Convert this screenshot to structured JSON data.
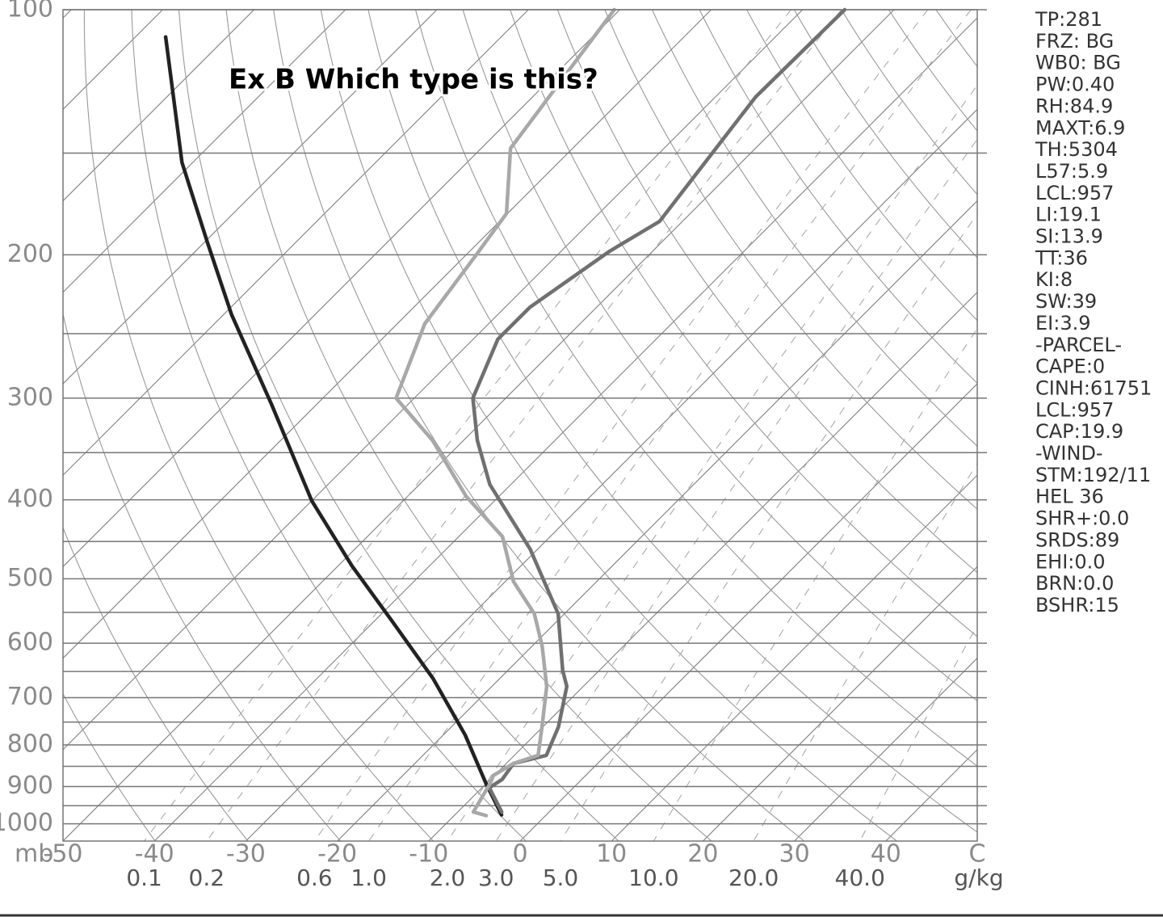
{
  "chart_data": {
    "type": "skewt",
    "title": "Ex B Which type is this?",
    "y_label": "mb",
    "log_y": true,
    "ylim": [
      100,
      1050
    ],
    "yticks": [
      100,
      200,
      300,
      400,
      500,
      600,
      700,
      800,
      900,
      1000
    ],
    "y_minor_gridlines": [
      150,
      250,
      350,
      450,
      550,
      650,
      750,
      850,
      950
    ],
    "xlim": [
      -50,
      50
    ],
    "xticks": [
      -50,
      -40,
      -30,
      -20,
      -10,
      0,
      10,
      20,
      30,
      40,
      {
        "value": 50,
        "label": "C"
      }
    ],
    "mixing_ratio_ticks": [
      {
        "value": 0.1,
        "label": "0.1"
      },
      {
        "value": 0.2,
        "label": "0.2"
      },
      {
        "value": 0.6,
        "label": "0.6"
      },
      {
        "value": 1,
        "label": "1.0"
      },
      {
        "value": 2,
        "label": "2.0"
      },
      {
        "value": 3,
        "label": "3.0"
      },
      {
        "value": 5,
        "label": "5.0"
      },
      {
        "value": 10,
        "label": "10.0"
      },
      {
        "value": 20,
        "label": "20.0"
      },
      {
        "value": 40,
        "label": "40.0"
      }
    ],
    "mixing_ratio_unit": "g/kg",
    "series": [
      {
        "color": "#222222",
        "y": [
          108,
          154,
          193,
          237,
          305,
          401,
          482,
          565,
          663,
          778,
          891,
          975
        ],
        "values": [
          -126.7,
          -111.2,
          -99.7,
          -89.1,
          -75,
          -60,
          -48.5,
          -37.9,
          -27.3,
          -17.6,
          -10.1,
          -4.9
        ]
      },
      {
        "color": "#707070",
        "y": [
          100,
          128,
          182,
          198,
          232,
          254,
          300,
          338,
          383,
          460,
          552,
          648,
          678,
          760,
          824,
          843,
          882,
          903,
          967
        ],
        "values": [
          -55.4,
          -55.6,
          -52.5,
          -54.7,
          -57.3,
          -57.3,
          -53.6,
          -48.5,
          -42.3,
          -30.8,
          -20.7,
          -14,
          -11.8,
          -8.3,
          -6.5,
          -9.2,
          -8.7,
          -9.2,
          -5.2
        ]
      },
      {
        "color": "#a8a8a8",
        "y": [
          100,
          148,
          178,
          202,
          243,
          300,
          338,
          396,
          444,
          504,
          552,
          605,
          678,
          760,
          824,
          843,
          872,
          891,
          967,
          977
        ],
        "values": [
          -80.6,
          -76.8,
          -70.1,
          -68.8,
          -67,
          -62,
          -53.4,
          -43.6,
          -35.2,
          -29.1,
          -23.3,
          -18.9,
          -14,
          -10.1,
          -7.4,
          -9.2,
          -10.1,
          -9.6,
          -8.3,
          -6.5
        ]
      }
    ],
    "indices": [
      "TP:281",
      "FRZ: BG",
      "WB0: BG",
      "PW:0.40",
      "RH:84.9",
      "MAXT:6.9",
      "TH:5304",
      "L57:5.9",
      "LCL:957",
      "LI:19.1",
      "SI:13.9",
      "TT:36",
      "KI:8",
      "SW:39",
      "EI:3.9",
      "-PARCEL-",
      "CAPE:0",
      "CINH:61751",
      "LCL:957",
      "CAP:19.9",
      "-WIND-",
      "STM:192/11",
      "HEL 36",
      "SHR+:0.0",
      "SRDS:89",
      "EHI:0.0",
      "BRN:0.0",
      "BSHR:15"
    ]
  }
}
